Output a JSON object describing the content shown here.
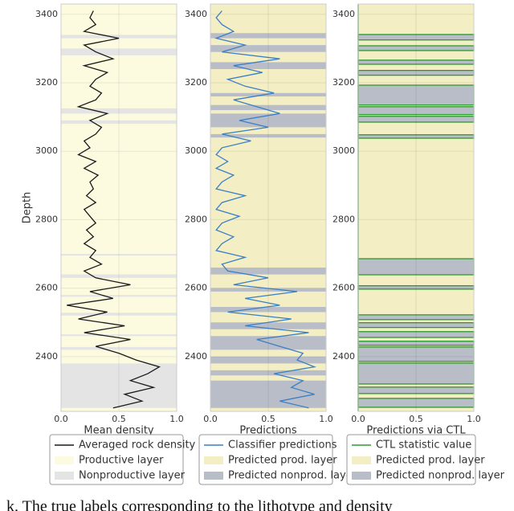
{
  "chart_data": [
    {
      "type": "line",
      "y_label": "Depth",
      "x_label": "Mean density",
      "xlim": [
        0,
        1
      ],
      "xticks": [
        {
          "value": 0,
          "label": "0.0"
        },
        0.5,
        {
          "value": 1,
          "label": "1.0"
        }
      ],
      "ylim": [
        2240,
        3430
      ],
      "yticks": [
        2400,
        2600,
        2800,
        3000,
        3200,
        3400
      ],
      "grid": true,
      "depth": [
        2250,
        2270,
        2290,
        2310,
        2330,
        2350,
        2370,
        2390,
        2410,
        2430,
        2450,
        2470,
        2490,
        2510,
        2530,
        2550,
        2570,
        2590,
        2610,
        2630,
        2650,
        2670,
        2690,
        2710,
        2730,
        2750,
        2770,
        2790,
        2810,
        2830,
        2850,
        2870,
        2890,
        2910,
        2930,
        2950,
        2970,
        2990,
        3010,
        3030,
        3050,
        3070,
        3090,
        3110,
        3130,
        3150,
        3170,
        3190,
        3210,
        3230,
        3250,
        3270,
        3290,
        3310,
        3330,
        3350,
        3370,
        3390,
        3410
      ],
      "series": [
        {
          "name": "Averaged rock density",
          "color": "#1a1a1a",
          "values": [
            0.45,
            0.7,
            0.55,
            0.8,
            0.6,
            0.75,
            0.85,
            0.65,
            0.5,
            0.3,
            0.6,
            0.2,
            0.55,
            0.15,
            0.4,
            0.05,
            0.45,
            0.25,
            0.6,
            0.3,
            0.2,
            0.35,
            0.25,
            0.3,
            0.2,
            0.28,
            0.22,
            0.3,
            0.25,
            0.2,
            0.3,
            0.22,
            0.28,
            0.25,
            0.32,
            0.2,
            0.3,
            0.15,
            0.25,
            0.2,
            0.3,
            0.35,
            0.25,
            0.4,
            0.15,
            0.3,
            0.35,
            0.25,
            0.3,
            0.4,
            0.2,
            0.45,
            0.3,
            0.2,
            0.5,
            0.2,
            0.3,
            0.25,
            0.28
          ]
        }
      ],
      "bands": [
        {
          "name": "Productive layer",
          "color": "#fcfadf",
          "ranges": [
            [
              2240,
              3430
            ]
          ]
        },
        {
          "name": "Nonproductive layer",
          "color": "#e4e4e4",
          "ranges": [
            [
              2250,
              2380
            ],
            [
              2420,
              2428
            ],
            [
              2460,
              2465
            ],
            [
              2520,
              2528
            ],
            [
              2575,
              2580
            ],
            [
              2630,
              2640
            ],
            [
              2695,
              2700
            ],
            [
              3080,
              3090
            ],
            [
              3110,
              3125
            ],
            [
              3280,
              3300
            ],
            [
              3330,
              3340
            ]
          ]
        }
      ]
    },
    {
      "type": "line",
      "x_label": "Predictions",
      "xlim": [
        0,
        1
      ],
      "xticks": [
        {
          "value": 0,
          "label": "0.0"
        },
        0.5,
        {
          "value": 1,
          "label": "1.0"
        }
      ],
      "ylim": [
        2240,
        3430
      ],
      "yticks": [
        2400,
        2600,
        2800,
        3000,
        3200,
        3400
      ],
      "grid": true,
      "depth": [
        2250,
        2270,
        2290,
        2310,
        2330,
        2350,
        2370,
        2390,
        2410,
        2430,
        2450,
        2470,
        2490,
        2510,
        2530,
        2550,
        2570,
        2590,
        2610,
        2630,
        2650,
        2670,
        2690,
        2710,
        2730,
        2750,
        2770,
        2790,
        2810,
        2830,
        2850,
        2870,
        2890,
        2910,
        2930,
        2950,
        2970,
        2990,
        3010,
        3030,
        3050,
        3070,
        3090,
        3110,
        3130,
        3150,
        3170,
        3190,
        3210,
        3230,
        3250,
        3270,
        3290,
        3310,
        3330,
        3350,
        3370,
        3390,
        3410
      ],
      "series": [
        {
          "name": "Classifier predictions",
          "color": "#3b7fc4",
          "values": [
            0.85,
            0.6,
            0.9,
            0.7,
            0.8,
            0.55,
            0.9,
            0.75,
            0.8,
            0.6,
            0.4,
            0.85,
            0.3,
            0.7,
            0.15,
            0.6,
            0.3,
            0.75,
            0.2,
            0.5,
            0.15,
            0.1,
            0.3,
            0.05,
            0.1,
            0.2,
            0.05,
            0.1,
            0.25,
            0.05,
            0.1,
            0.3,
            0.05,
            0.1,
            0.2,
            0.05,
            0.15,
            0.05,
            0.1,
            0.35,
            0.1,
            0.5,
            0.25,
            0.6,
            0.4,
            0.2,
            0.55,
            0.3,
            0.15,
            0.45,
            0.2,
            0.6,
            0.1,
            0.3,
            0.05,
            0.2,
            0.1,
            0.05,
            0.1
          ]
        }
      ],
      "bands": [
        {
          "name": "Predicted prod. layer",
          "color": "#f3eec4",
          "ranges": [
            [
              2240,
              3430
            ]
          ]
        },
        {
          "name": "Predicted nonprod. layer",
          "color": "#b8bdc8",
          "ranges": [
            [
              2250,
              2330
            ],
            [
              2345,
              2360
            ],
            [
              2380,
              2400
            ],
            [
              2420,
              2460
            ],
            [
              2480,
              2500
            ],
            [
              2530,
              2545
            ],
            [
              2590,
              2600
            ],
            [
              2640,
              2660
            ],
            [
              3040,
              3050
            ],
            [
              3070,
              3110
            ],
            [
              3120,
              3135
            ],
            [
              3160,
              3170
            ],
            [
              3240,
              3260
            ],
            [
              3290,
              3310
            ],
            [
              3330,
              3345
            ]
          ]
        }
      ]
    },
    {
      "type": "step",
      "x_label": "Predictions via CTL",
      "xlim": [
        0,
        1
      ],
      "xticks": [
        {
          "value": 0,
          "label": "0.0"
        },
        0.5,
        {
          "value": 1,
          "label": "1.0"
        }
      ],
      "ylim": [
        2240,
        3430
      ],
      "yticks": [
        2400,
        2600,
        2800,
        3000,
        3200,
        3400
      ],
      "grid": true,
      "series": [
        {
          "name": "CTL statistic value",
          "color": "#2e9a2e"
        }
      ],
      "bands": [
        {
          "name": "Predicted prod. layer",
          "color": "#f3eec4",
          "ranges": [
            [
              2240,
              3430
            ]
          ]
        },
        {
          "name": "Predicted nonprod. layer",
          "color": "#b8bdc8",
          "ranges": [
            [
              2252,
              2278
            ],
            [
              2292,
              2311
            ],
            [
              2320,
              2381
            ],
            [
              2386,
              2428
            ],
            [
              2433,
              2445
            ],
            [
              2456,
              2473
            ],
            [
              2485,
              2499
            ],
            [
              2508,
              2522
            ],
            [
              2597,
              2607
            ],
            [
              2639,
              2686
            ],
            [
              3038,
              3048
            ],
            [
              3085,
              3102
            ],
            [
              3107,
              3130
            ],
            [
              3135,
              3193
            ],
            [
              3222,
              3236
            ],
            [
              3254,
              3266
            ],
            [
              3294,
              3308
            ],
            [
              3325,
              3341
            ]
          ]
        }
      ]
    }
  ],
  "caption": "k. The true labels corresponding to the lithotype and density"
}
